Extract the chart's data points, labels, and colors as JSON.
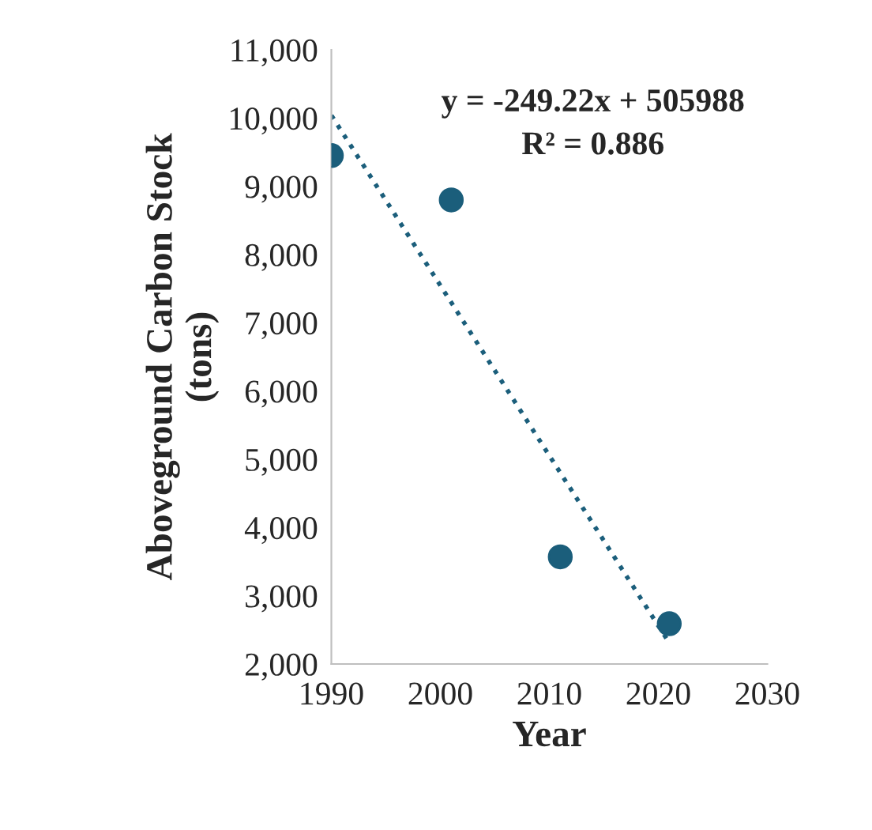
{
  "chart_data": {
    "type": "scatter",
    "xlabel": "Year",
    "ylabel": "Aboveground Carbon Stock\n(tons)",
    "series": [
      {
        "color": "#1b5e7b",
        "marker": "circle",
        "x": [
          1990,
          2001,
          2011,
          2021
        ],
        "values": [
          9450,
          8800,
          3570,
          2590
        ]
      },
      {
        "type": "line",
        "color": "#1b5e7b",
        "line_style": "dotted",
        "marker": "none",
        "x": [
          1990,
          2021
        ],
        "values": [
          10040,
          2310
        ]
      }
    ],
    "annotations": [
      "y = -249.22x + 505988",
      "R² = 0.886"
    ],
    "xlim": [
      1990,
      2030
    ],
    "xticks": [
      1990,
      2000,
      2010,
      2020,
      2030
    ],
    "ylim": [
      2000,
      11000
    ],
    "yticks": [
      {
        "value": 2000,
        "label": "2,000"
      },
      {
        "value": 3000,
        "label": "3,000"
      },
      {
        "value": 4000,
        "label": "4,000"
      },
      {
        "value": 5000,
        "label": "5,000"
      },
      {
        "value": 6000,
        "label": "6,000"
      },
      {
        "value": 7000,
        "label": "7,000"
      },
      {
        "value": 8000,
        "label": "8,000"
      },
      {
        "value": 9000,
        "label": "9,000"
      },
      {
        "value": 10000,
        "label": "10,000"
      },
      {
        "value": 11000,
        "label": "11,000"
      }
    ],
    "grid": false,
    "legend": false
  }
}
